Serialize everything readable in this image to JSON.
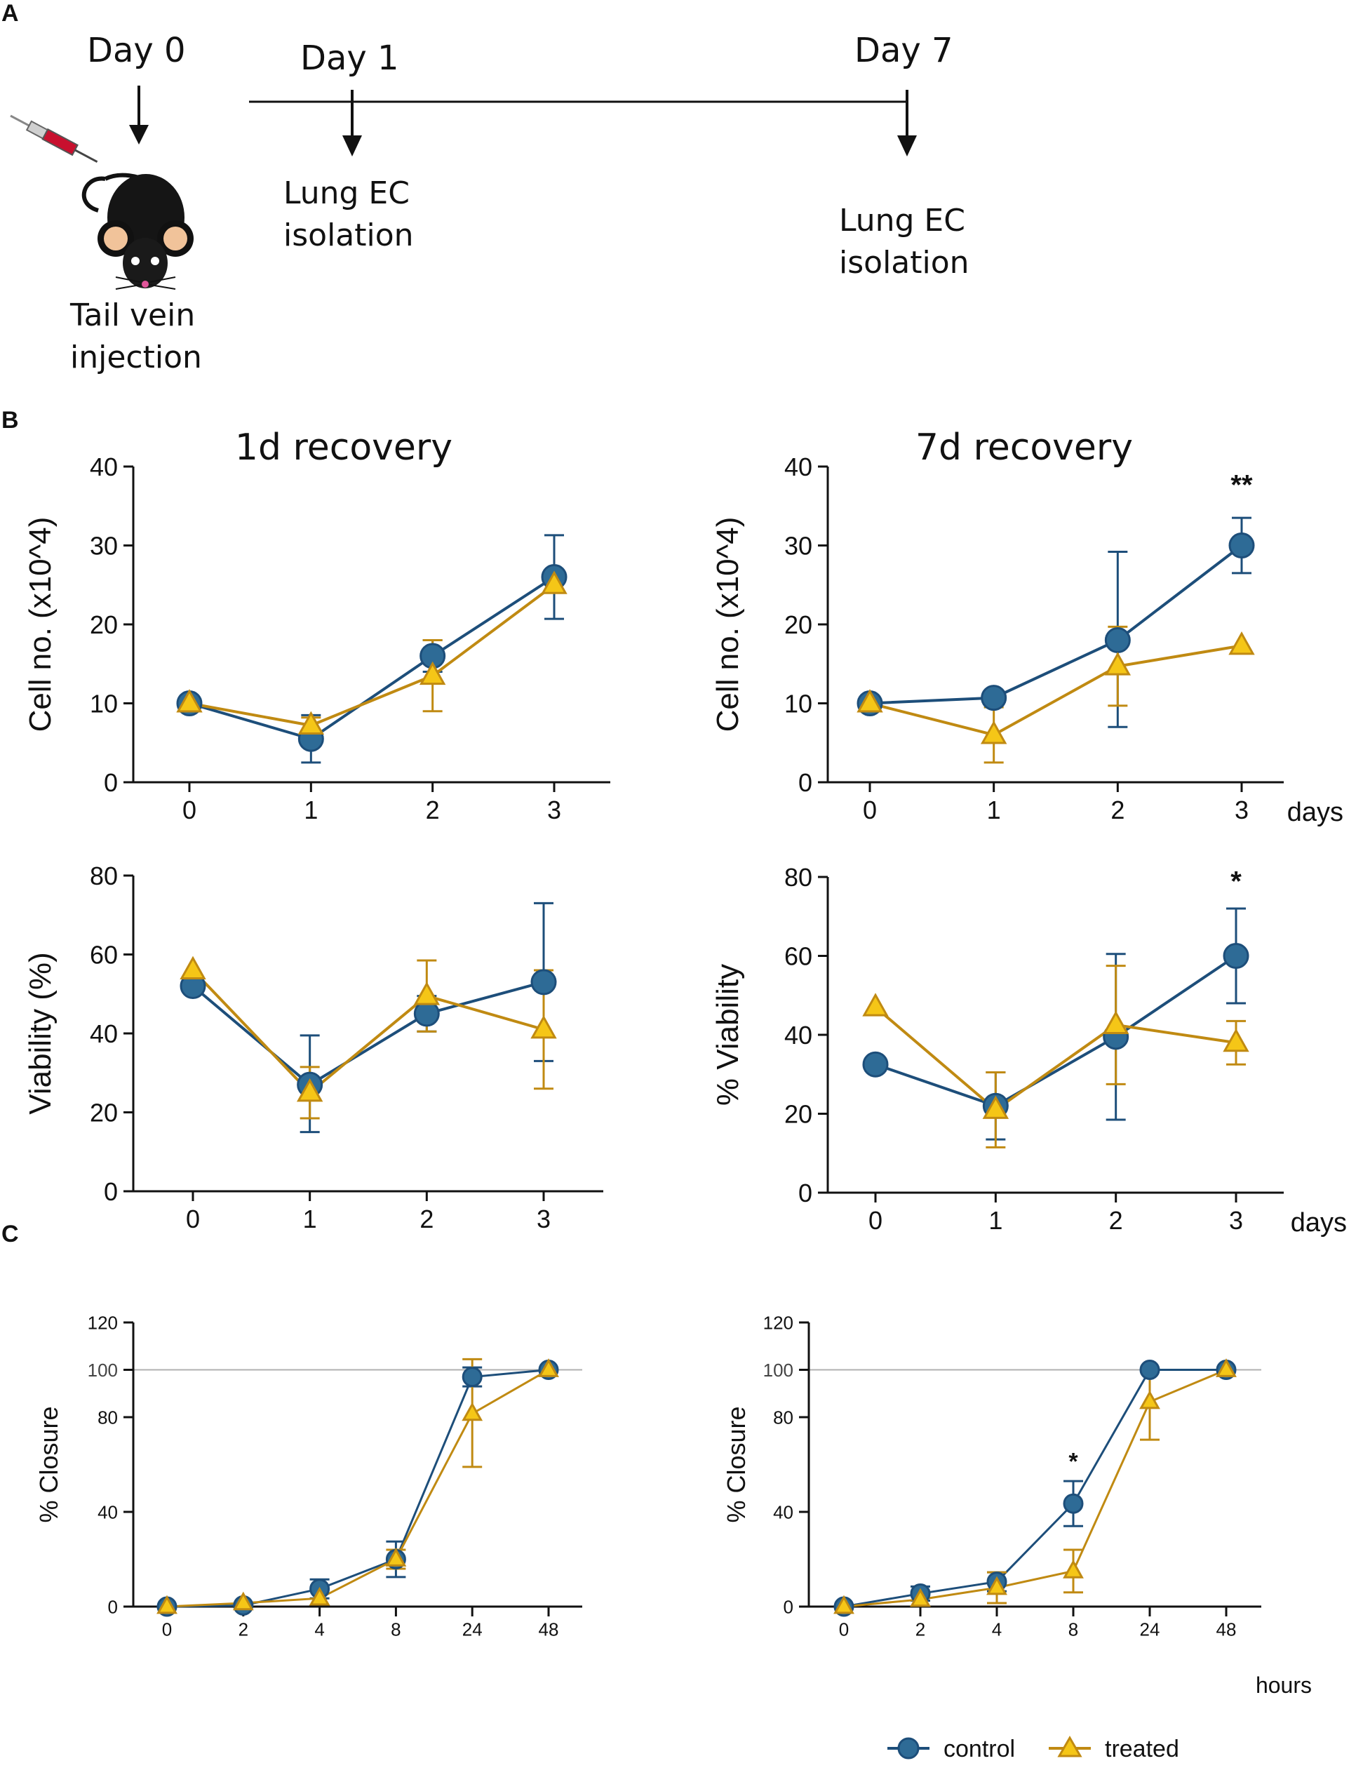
{
  "colors": {
    "control": "#1d4e7a",
    "control_fill": "#2e6b96",
    "treated": "#c08a12",
    "treated_fill": "#f5c617",
    "ref_line": "#b0b0b0"
  },
  "panels": {
    "a": "A",
    "b": "B",
    "c": "C"
  },
  "timeline": {
    "day0": "Day 0",
    "day1": "Day 1",
    "day7": "Day 7",
    "iso1_l1": "Lung EC",
    "iso1_l2": "isolation",
    "iso7_l1": "Lung EC",
    "iso7_l2": "isolation",
    "inj_l1": "Tail vein",
    "inj_l2": "injection"
  },
  "legend": {
    "control": "control",
    "treated": "treated"
  },
  "chart_data": [
    {
      "id": "b1",
      "type": "line",
      "title": "1d recovery",
      "xlabel": "",
      "ylabel": "Cell no. (x10^4)",
      "categories": [
        "0",
        "1",
        "2",
        "3"
      ],
      "yticks": [
        0,
        10,
        20,
        30,
        40
      ],
      "ylim": [
        0,
        40
      ],
      "series": [
        {
          "name": "control",
          "values": [
            10,
            5.5,
            16,
            26
          ],
          "err_up": [
            0,
            3,
            2,
            5.3
          ],
          "err_down": [
            0,
            3,
            2,
            5.3
          ]
        },
        {
          "name": "treated",
          "values": [
            10,
            7.2,
            13.5,
            25
          ],
          "err_up": [
            0,
            1,
            4.5,
            0
          ],
          "err_down": [
            0,
            1,
            4.5,
            0
          ]
        }
      ],
      "annotations": []
    },
    {
      "id": "b2",
      "type": "line",
      "title": "7d recovery",
      "xlabel": "days",
      "ylabel": "Cell no. (x10^4)",
      "categories": [
        "0",
        "1",
        "2",
        "3"
      ],
      "yticks": [
        0,
        10,
        20,
        30,
        40
      ],
      "ylim": [
        0,
        40
      ],
      "series": [
        {
          "name": "control",
          "values": [
            10,
            10.7,
            18,
            30
          ],
          "err_up": [
            0,
            0,
            11.2,
            3.5
          ],
          "err_down": [
            0,
            0,
            11,
            3.5
          ]
        },
        {
          "name": "treated",
          "values": [
            10,
            6,
            14.7,
            17.3
          ],
          "err_up": [
            0,
            3.5,
            5,
            0
          ],
          "err_down": [
            0,
            3.5,
            5,
            0
          ]
        }
      ],
      "annotations": [
        {
          "x": "3",
          "y": 36.5,
          "text": "**"
        }
      ]
    },
    {
      "id": "b3",
      "type": "line",
      "title": "",
      "xlabel": "",
      "ylabel": "Viability (%)",
      "categories": [
        "0",
        "1",
        "2",
        "3"
      ],
      "yticks": [
        0,
        20,
        40,
        60,
        80
      ],
      "ylim": [
        0,
        80
      ],
      "series": [
        {
          "name": "control",
          "values": [
            52,
            27,
            45,
            53
          ],
          "err_up": [
            0,
            12.5,
            4.5,
            20
          ],
          "err_down": [
            0,
            12,
            4.5,
            20
          ]
        },
        {
          "name": "treated",
          "values": [
            56,
            25,
            49.5,
            41
          ],
          "err_up": [
            0,
            6.5,
            9,
            15
          ],
          "err_down": [
            0,
            6.5,
            9,
            15
          ]
        }
      ],
      "annotations": []
    },
    {
      "id": "b4",
      "type": "line",
      "title": "",
      "xlabel": "days",
      "ylabel": "% Viability",
      "categories": [
        "0",
        "1",
        "2",
        "3"
      ],
      "yticks": [
        0,
        20,
        40,
        60,
        80
      ],
      "ylim": [
        0,
        80
      ],
      "series": [
        {
          "name": "control",
          "values": [
            32.5,
            22,
            39.5,
            60
          ],
          "err_up": [
            0,
            8.5,
            21,
            12
          ],
          "err_down": [
            0,
            8.5,
            21,
            12
          ]
        },
        {
          "name": "treated",
          "values": [
            47,
            21,
            42.5,
            38
          ],
          "err_up": [
            0,
            9.5,
            15,
            5.5
          ],
          "err_down": [
            0,
            9.5,
            15,
            5.5
          ]
        }
      ],
      "annotations": [
        {
          "x": "3",
          "y": 76.5,
          "text": "*"
        }
      ]
    },
    {
      "id": "c1",
      "type": "line",
      "title": "",
      "xlabel": "",
      "ylabel": "% Closure",
      "categories": [
        "0",
        "2",
        "4",
        "8",
        "24",
        "48"
      ],
      "yticks": [
        0,
        40,
        80,
        100,
        120
      ],
      "ylim": [
        0,
        120
      ],
      "ref_line": 100,
      "series": [
        {
          "name": "control",
          "values": [
            0,
            0.5,
            7.5,
            20,
            97,
            100
          ],
          "err_up": [
            0,
            0,
            4,
            7.5,
            4,
            0
          ],
          "err_down": [
            0,
            0,
            4,
            7.5,
            4,
            0
          ]
        },
        {
          "name": "treated",
          "values": [
            0,
            1.5,
            3.5,
            20,
            81.5,
            100
          ],
          "err_up": [
            0,
            0,
            0,
            4,
            23,
            0
          ],
          "err_down": [
            0,
            0,
            0,
            4,
            22.5,
            0
          ]
        }
      ],
      "annotations": []
    },
    {
      "id": "c2",
      "type": "line",
      "title": "",
      "xlabel": "hours",
      "ylabel": "% Closure",
      "categories": [
        "0",
        "2",
        "4",
        "8",
        "24",
        "48"
      ],
      "yticks": [
        0,
        40,
        80,
        100,
        120
      ],
      "ylim": [
        0,
        120
      ],
      "ref_line": 100,
      "series": [
        {
          "name": "control",
          "values": [
            0,
            5.5,
            10.5,
            43.5,
            100,
            100
          ],
          "err_up": [
            0,
            3,
            4,
            9.5,
            0,
            0
          ],
          "err_down": [
            0,
            3,
            4,
            9.5,
            0,
            0
          ]
        },
        {
          "name": "treated",
          "values": [
            0,
            3,
            8,
            15,
            86.5,
            100
          ],
          "err_up": [
            0,
            0,
            6.5,
            9,
            14,
            0
          ],
          "err_down": [
            0,
            0,
            6.5,
            9,
            16,
            0
          ]
        }
      ],
      "annotations": [
        {
          "x": "8",
          "y": 58,
          "text": "*"
        }
      ]
    }
  ]
}
